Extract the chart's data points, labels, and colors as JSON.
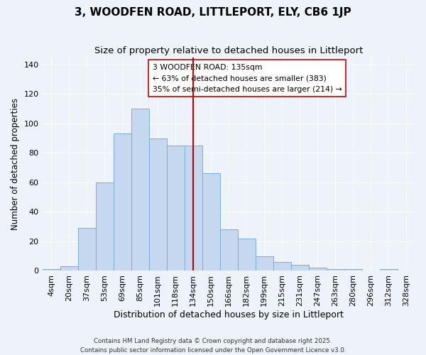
{
  "title": "3, WOODFEN ROAD, LITTLEPORT, ELY, CB6 1JP",
  "subtitle": "Size of property relative to detached houses in Littleport",
  "xlabel": "Distribution of detached houses by size in Littleport",
  "ylabel": "Number of detached properties",
  "bar_labels": [
    "4sqm",
    "20sqm",
    "37sqm",
    "53sqm",
    "69sqm",
    "85sqm",
    "101sqm",
    "118sqm",
    "134sqm",
    "150sqm",
    "166sqm",
    "182sqm",
    "199sqm",
    "215sqm",
    "231sqm",
    "247sqm",
    "263sqm",
    "280sqm",
    "296sqm",
    "312sqm",
    "328sqm"
  ],
  "bar_heights": [
    1,
    3,
    29,
    60,
    93,
    110,
    90,
    85,
    85,
    66,
    28,
    22,
    10,
    6,
    4,
    2,
    1,
    1,
    0,
    1,
    0
  ],
  "bar_color": "#c5d8f0",
  "bar_edge_color": "#7baed4",
  "vline_x": 8.0,
  "vline_color": "#cc0000",
  "annotation_text_line1": "3 WOODFEN ROAD: 135sqm",
  "annotation_text_line2": "← 63% of detached houses are smaller (383)",
  "annotation_text_line3": "35% of semi-detached houses are larger (214) →",
  "ylim": [
    0,
    145
  ],
  "yticks": [
    0,
    20,
    40,
    60,
    80,
    100,
    120,
    140
  ],
  "title_fontsize": 11,
  "subtitle_fontsize": 9.5,
  "ylabel_fontsize": 8.5,
  "xlabel_fontsize": 9,
  "tick_fontsize": 8,
  "footer_line1": "Contains HM Land Registry data © Crown copyright and database right 2025.",
  "footer_line2": "Contains public sector information licensed under the Open Government Licence v3.0.",
  "background_color": "#eef2fa",
  "grid_color": "#ffffff"
}
